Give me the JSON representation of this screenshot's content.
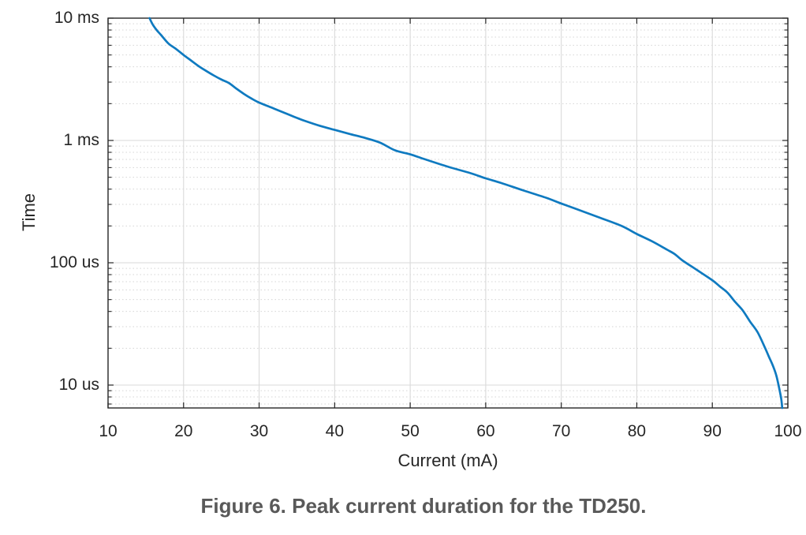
{
  "figure": {
    "caption": "Figure 6. Peak current duration for the TD250."
  },
  "chart_data": {
    "type": "line",
    "title": "",
    "xlabel": "Current (mA)",
    "ylabel": "Time",
    "x_scale": "linear",
    "y_scale": "log",
    "xlim": [
      10,
      100
    ],
    "ylim_ms": [
      0.0065,
      10
    ],
    "xticks": [
      10,
      20,
      30,
      40,
      50,
      60,
      70,
      80,
      90,
      100
    ],
    "yticks": [
      {
        "value_ms": 10,
        "label": "10 ms"
      },
      {
        "value_ms": 1,
        "label": "1 ms"
      },
      {
        "value_ms": 0.1,
        "label": "100 us"
      },
      {
        "value_ms": 0.01,
        "label": "10 us"
      }
    ],
    "grid": "major solid, minor log-decade dotted",
    "legend": "none",
    "series": [
      {
        "name": "Peak current duration",
        "color": "#0f7ac0",
        "points_mA_ms": [
          [
            15.5,
            10.0
          ],
          [
            15.7,
            9.4
          ],
          [
            16.0,
            8.7
          ],
          [
            16.5,
            7.9
          ],
          [
            17.0,
            7.3
          ],
          [
            18.0,
            6.2
          ],
          [
            19.0,
            5.6
          ],
          [
            20.0,
            5.0
          ],
          [
            21.0,
            4.5
          ],
          [
            22.0,
            4.05
          ],
          [
            23.0,
            3.7
          ],
          [
            24.0,
            3.4
          ],
          [
            25.0,
            3.15
          ],
          [
            26.0,
            2.95
          ],
          [
            27.0,
            2.65
          ],
          [
            28.0,
            2.4
          ],
          [
            29.0,
            2.2
          ],
          [
            30.0,
            2.04
          ],
          [
            32.0,
            1.82
          ],
          [
            34.0,
            1.62
          ],
          [
            35.0,
            1.53
          ],
          [
            36.0,
            1.45
          ],
          [
            38.0,
            1.32
          ],
          [
            40.0,
            1.22
          ],
          [
            42.0,
            1.13
          ],
          [
            44.0,
            1.05
          ],
          [
            46.0,
            0.96
          ],
          [
            48.0,
            0.83
          ],
          [
            50.0,
            0.77
          ],
          [
            52.0,
            0.7
          ],
          [
            55.0,
            0.61
          ],
          [
            58.0,
            0.54
          ],
          [
            60.0,
            0.49
          ],
          [
            62.0,
            0.45
          ],
          [
            65.0,
            0.39
          ],
          [
            68.0,
            0.34
          ],
          [
            70.0,
            0.305
          ],
          [
            72.0,
            0.275
          ],
          [
            75.0,
            0.235
          ],
          [
            78.0,
            0.2
          ],
          [
            80.0,
            0.172
          ],
          [
            82.0,
            0.15
          ],
          [
            84.0,
            0.128
          ],
          [
            85.0,
            0.118
          ],
          [
            86.0,
            0.105
          ],
          [
            88.0,
            0.087
          ],
          [
            90.0,
            0.072
          ],
          [
            91.0,
            0.064
          ],
          [
            92.0,
            0.057
          ],
          [
            93.0,
            0.048
          ],
          [
            94.0,
            0.041
          ],
          [
            95.0,
            0.033
          ],
          [
            96.0,
            0.027
          ],
          [
            97.0,
            0.02
          ],
          [
            97.5,
            0.017
          ],
          [
            98.0,
            0.0145
          ],
          [
            98.5,
            0.0118
          ],
          [
            99.0,
            0.0085
          ],
          [
            99.15,
            0.0075
          ],
          [
            99.25,
            0.0065
          ]
        ]
      }
    ]
  },
  "style": {
    "background": "#ffffff",
    "curve_color": "#0f7ac0",
    "axis_color": "#262626",
    "major_grid_color": "#dadada",
    "minor_grid_color": "#d5d5d5",
    "tick_label_color": "#262626",
    "caption_color": "#595959"
  }
}
